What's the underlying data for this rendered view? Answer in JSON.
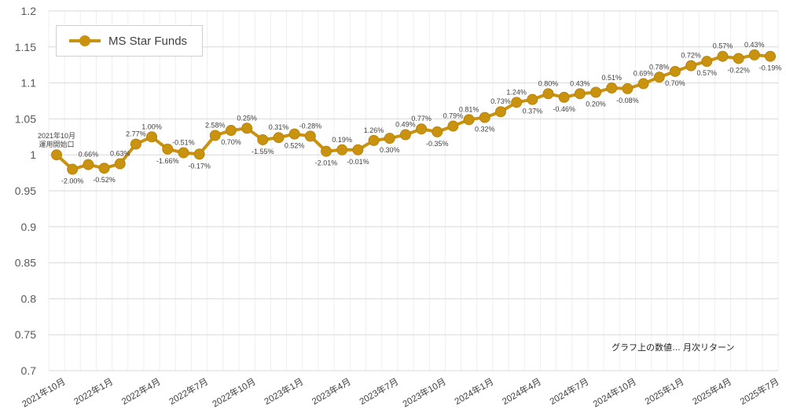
{
  "chart_data": {
    "type": "line",
    "title": "",
    "xlabel": "",
    "ylabel": "",
    "ylim": [
      0.7,
      1.2
    ],
    "yticks": [
      "0.7",
      "0.75",
      "0.8",
      "0.85",
      "0.9",
      "0.95",
      "1",
      "1.05",
      "1.1",
      "1.15",
      "1.2"
    ],
    "grid": true,
    "legend_placement": "top-left",
    "color": "#c9920f",
    "xticks": [
      "2021年10月",
      "2022年1月",
      "2022年4月",
      "2022年7月",
      "2022年10月",
      "2023年1月",
      "2023年4月",
      "2023年7月",
      "2023年10月",
      "2024年1月",
      "2024年4月",
      "2024年7月",
      "2024年10月",
      "2025年1月",
      "2025年4月",
      "2025年7月"
    ],
    "start_label": [
      "2021年10月",
      "運用開始口"
    ],
    "annotation": "グラフ上の数値… 月次リターン",
    "series": [
      {
        "name": "MS Star Funds",
        "values": [
          1.0,
          0.98,
          0.9865,
          0.9814,
          0.9876,
          1.015,
          1.025,
          1.008,
          1.003,
          1.001,
          1.027,
          1.034,
          1.037,
          1.021,
          1.024,
          1.029,
          1.026,
          1.005,
          1.007,
          1.007,
          1.02,
          1.023,
          1.028,
          1.036,
          1.032,
          1.04,
          1.049,
          1.052,
          1.06,
          1.073,
          1.077,
          1.085,
          1.08,
          1.085,
          1.087,
          1.093,
          1.092,
          1.099,
          1.108,
          1.116,
          1.124,
          1.13,
          1.137,
          1.134,
          1.139,
          1.137
        ],
        "returns": [
          "",
          "-2.00%",
          "0.66%",
          "-0.52%",
          "0.63%",
          "2.77%",
          "1.00%",
          "-1.66%",
          "-0.51%",
          "-0.17%",
          "2.58%",
          "0.70%",
          "0.25%",
          "-1.55%",
          "0.31%",
          "0.52%",
          "-0.28%",
          "-2.01%",
          "0.19%",
          "-0.01%",
          "1.26%",
          "0.30%",
          "0.49%",
          "0.77%",
          "-0.35%",
          "0.79%",
          "0.81%",
          "0.32%",
          "0.73%",
          "1.24%",
          "0.37%",
          "0.80%",
          "-0.46%",
          "0.43%",
          "0.20%",
          "0.51%",
          "-0.08%",
          "0.69%",
          "0.78%",
          "0.70%",
          "0.72%",
          "0.57%",
          "0.57%",
          "-0.22%",
          "0.43%",
          "-0.19%"
        ],
        "label_side": [
          "above",
          "below",
          "above",
          "below",
          "above",
          "above",
          "above",
          "below",
          "above",
          "below",
          "above",
          "below",
          "above",
          "below",
          "above",
          "below",
          "above",
          "below",
          "above",
          "below",
          "above",
          "below",
          "above",
          "above",
          "below",
          "above",
          "above",
          "below",
          "above",
          "above",
          "below",
          "above",
          "below",
          "above",
          "below",
          "above",
          "below",
          "above",
          "above",
          "below",
          "above",
          "below",
          "above",
          "below",
          "above",
          "below"
        ]
      }
    ]
  }
}
